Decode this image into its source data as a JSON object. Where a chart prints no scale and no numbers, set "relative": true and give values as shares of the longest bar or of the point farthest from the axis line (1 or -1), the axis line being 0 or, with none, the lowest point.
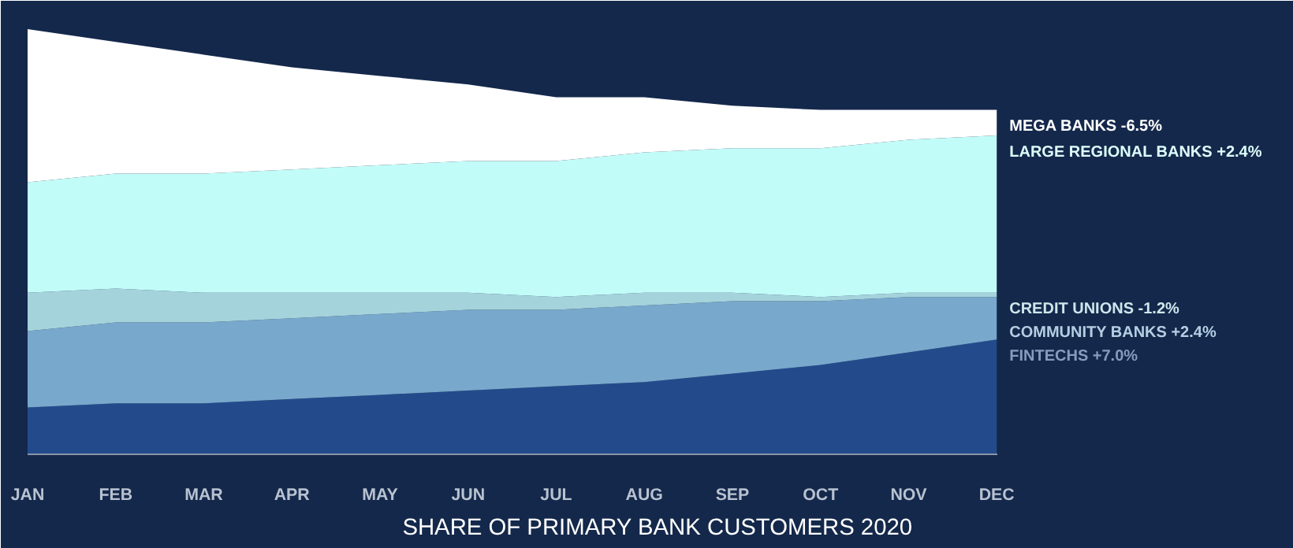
{
  "chart_data": {
    "type": "area",
    "stacked": true,
    "relative": true,
    "legend": false,
    "grid": false,
    "title": "SHARE OF PRIMARY BANK CUSTOMERS 2020",
    "categories": [
      "JAN",
      "FEB",
      "MAR",
      "APR",
      "MAY",
      "JUN",
      "JUL",
      "AUG",
      "SEP",
      "OCT",
      "NOV",
      "DEC"
    ],
    "series": [
      {
        "name": "FINTECHS  +7.0%",
        "color": "#234b8c",
        "values": [
          0.11,
          0.12,
          0.12,
          0.13,
          0.14,
          0.15,
          0.16,
          0.17,
          0.19,
          0.21,
          0.24,
          0.27
        ]
      },
      {
        "name": "COMMUNITY BANKS  +2.4%",
        "color": "#78a8cc",
        "values": [
          0.18,
          0.19,
          0.19,
          0.19,
          0.19,
          0.19,
          0.18,
          0.18,
          0.17,
          0.15,
          0.13,
          0.1
        ]
      },
      {
        "name": "CREDIT UNIONS  -1.2%",
        "color": "#a5d3dc",
        "values": [
          0.09,
          0.08,
          0.07,
          0.06,
          0.05,
          0.04,
          0.03,
          0.03,
          0.02,
          0.01,
          0.01,
          0.01
        ]
      },
      {
        "name": "LARGE REGIONAL BANKS  +2.4%",
        "color": "#c2fcf8",
        "values": [
          0.26,
          0.27,
          0.28,
          0.29,
          0.3,
          0.31,
          0.32,
          0.33,
          0.34,
          0.35,
          0.36,
          0.37
        ]
      },
      {
        "name": "MEGA BANKS  -6.5%",
        "color": "#ffffff",
        "values": [
          0.36,
          0.31,
          0.28,
          0.24,
          0.21,
          0.18,
          0.15,
          0.13,
          0.1,
          0.09,
          0.07,
          0.06
        ]
      }
    ]
  }
}
